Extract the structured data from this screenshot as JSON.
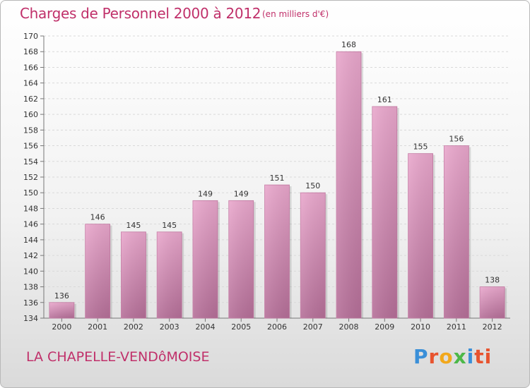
{
  "header": {
    "title": "Charges de Personnel 2000 à 2012",
    "subtitle": "(en milliers d'€)"
  },
  "footer": {
    "commune": "LA CHAPELLE-VENDôMOISE",
    "logo": "Proxiti"
  },
  "colors": {
    "title": "#c0306a",
    "bar_top": "#e9a7cc",
    "bar_bottom": "#b56f98"
  },
  "chart_data": {
    "type": "bar",
    "title": "Charges de Personnel 2000 à 2012",
    "subtitle": "(en milliers d'€)",
    "xlabel": "",
    "ylabel": "",
    "categories": [
      "2000",
      "2001",
      "2002",
      "2003",
      "2004",
      "2005",
      "2006",
      "2007",
      "2008",
      "2009",
      "2010",
      "2011",
      "2012"
    ],
    "values": [
      136,
      146,
      145,
      145,
      149,
      149,
      151,
      150,
      168,
      161,
      155,
      156,
      138
    ],
    "ylim": [
      134,
      170
    ],
    "yticks": [
      134,
      136,
      138,
      140,
      142,
      144,
      146,
      148,
      150,
      152,
      154,
      156,
      158,
      160,
      162,
      164,
      166,
      168,
      170
    ],
    "grid": true,
    "legend": "none"
  }
}
